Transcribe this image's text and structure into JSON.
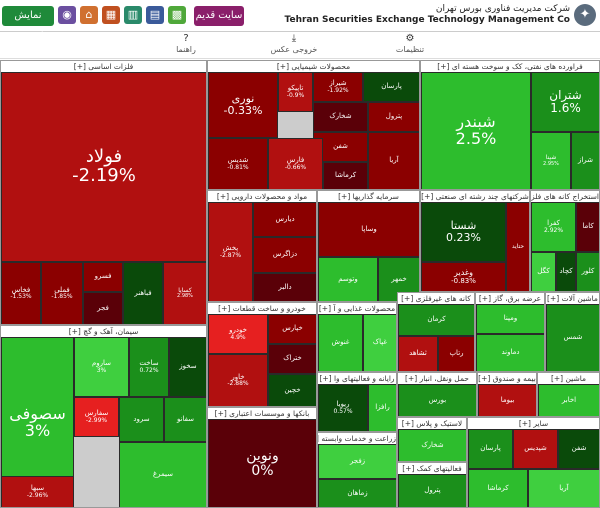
{
  "header": {
    "org_fa": "شرکت مدیریت فناوری بورس تهران",
    "org_en": "Tehran Securities Exchange Technology Management Co",
    "old_site_label": "سایت قدیم",
    "show_list_label": "نمایش فهرست"
  },
  "toolbar": {
    "settings_label": "تنظیمات",
    "fullscreen_label": "خروجی عکس",
    "help_label": "راهنما"
  },
  "sectors": {
    "basic_metals": "فلزات اساسی [+]",
    "chemicals": "محصولات شیمیایی [+]",
    "oil": "فراورده های نفتی، کک و سوخت هسته ای [+]",
    "cement": "سیمان، آهک و گچ [+]",
    "pharma": "مواد و محصولات دارویی [+]",
    "investment": "سرمایه گذاریها [+]",
    "multi": "شرکتهای چند رشته ای صنعتی [+]",
    "mining": "استخراج کانه های فلزی [+]",
    "auto": "خودرو و ساخت قطعات [+]",
    "food": "محصولات غذایی و آ [+]",
    "telecom": "رایانه و فعالیتهای وا [+]",
    "utilities": "عرضه برق، گاز [+]",
    "ceramics": "کانه های غیرفلزی [+]",
    "banks": "بانکها و موسسات اعتباری [+]",
    "agri": "زراعت و خدمات وابسته [+]",
    "rubber": "لاستیک و پلاس [+]",
    "transport": "حمل ونقل، انبار [+]",
    "finance": "فعالیتهای کمک [+]",
    "insurance": "بیمه و صندوق [+]",
    "machinery": "ماشین آلات [+]",
    "ceramic2": "سرامیک [+]",
    "textile": "ماشین [+]",
    "misc": "سایر [+]"
  },
  "tiles": {
    "foolad": {
      "name": "فولاد",
      "change": "-2.19%"
    },
    "fakhooz": {
      "name": "فخاس",
      "change": "-1.53%"
    },
    "fmeli": {
      "name": "فملی",
      "change": "-1.85%"
    },
    "fsoroos": {
      "name": "فسرو",
      "change": ""
    },
    "foolad2": {
      "name": "فباهنر",
      "change": ""
    },
    "fjer": {
      "name": "فجر",
      "change": ""
    },
    "noori": {
      "name": "نوری",
      "change": "-0.33%"
    },
    "tapico": {
      "name": "تاپیکو",
      "change": "-0.9%"
    },
    "shiraz": {
      "name": "شیراز",
      "change": "-1.92%"
    },
    "parsan": {
      "name": "پارسان",
      "change": ""
    },
    "shebandar_c": {
      "name": "شیندر",
      "change": ""
    },
    "shekharak": {
      "name": "شخارک",
      "change": ""
    },
    "petrol": {
      "name": "پترول",
      "change": ""
    },
    "shafan": {
      "name": "شفن",
      "change": ""
    },
    "shedis": {
      "name": "شدیس",
      "change": "-0.81%"
    },
    "fars": {
      "name": "فارس",
      "change": "-0.66%"
    },
    "kermasha": {
      "name": "کرماشا",
      "change": ""
    },
    "shepdis": {
      "name": "شپدیس",
      "change": ""
    },
    "arya": {
      "name": "آریا",
      "change": ""
    },
    "shebandar": {
      "name": "شبندر",
      "change": "2.5%"
    },
    "shetran": {
      "name": "شتران",
      "change": "1.6%"
    },
    "shiraz2": {
      "name": "شپنا",
      "change": "2.95%"
    },
    "sharaz": {
      "name": "شراز",
      "change": ""
    },
    "sofooji": {
      "name": "سصوفی",
      "change": "3%"
    },
    "sarum": {
      "name": "ساروم",
      "change": "3%"
    },
    "sakht": {
      "name": "ساخت",
      "change": "0.72%"
    },
    "skhooz": {
      "name": "سخوز",
      "change": ""
    },
    "sabha": {
      "name": "سبها",
      "change": "-2.96%"
    },
    "sfars": {
      "name": "سفارس",
      "change": "-2.99%"
    },
    "srood": {
      "name": "سرود",
      "change": ""
    },
    "sfano": {
      "name": "سفانو",
      "change": ""
    },
    "simorgh": {
      "name": "سیمرغ",
      "change": ""
    },
    "pakhsh": {
      "name": "پخش",
      "change": "-2.87%"
    },
    "dipars": {
      "name": "دیارس",
      "change": ""
    },
    "dalgars": {
      "name": "دالبر",
      "change": ""
    },
    "dzagros": {
      "name": "دزاگرس",
      "change": ""
    },
    "vsapa": {
      "name": "وساپا",
      "change": ""
    },
    "vgstar": {
      "name": "وتوسم",
      "change": ""
    },
    "shasta": {
      "name": "شستا",
      "change": "0.23%"
    },
    "vghadir": {
      "name": "وغدیر",
      "change": "-0.83%"
    },
    "khodro": {
      "name": "خودرو",
      "change": "4.9%"
    },
    "khepars": {
      "name": "خپارس",
      "change": ""
    },
    "kheraj": {
      "name": "ختراک",
      "change": ""
    },
    "khchin": {
      "name": "خچین",
      "change": ""
    },
    "khavar": {
      "name": "خاور",
      "change": "-2.88%"
    },
    "kaghazi": {
      "name": "کاما",
      "change": ""
    },
    "kchad": {
      "name": "کچاد",
      "change": ""
    },
    "kgol": {
      "name": "کگل",
      "change": ""
    },
    "kalor": {
      "name": "کلور",
      "change": ""
    },
    "kafr": {
      "name": "کفرا",
      "change": "2.92%"
    },
    "ghanoosh": {
      "name": "غنوش",
      "change": ""
    },
    "ghapak": {
      "name": "غپاک",
      "change": ""
    },
    "rtapikoo": {
      "name": "رتاپ",
      "change": ""
    },
    "ravir": {
      "name": "ریویا",
      "change": "0.57%"
    },
    "raghab": {
      "name": "رافزا",
      "change": ""
    },
    "vanovin": {
      "name": "ونوین",
      "change": "0%"
    },
    "kerman": {
      "name": "کرمان",
      "change": ""
    },
    "shahed": {
      "name": "ثشاهد",
      "change": ""
    },
    "shams": {
      "name": "شمس",
      "change": ""
    },
    "vmapna": {
      "name": "ومپنا",
      "change": ""
    },
    "damavand": {
      "name": "دماوند",
      "change": ""
    },
    "boyoma": {
      "name": "بیوما",
      "change": ""
    },
    "hamal": {
      "name": "حتاید",
      "change": ""
    },
    "sebura": {
      "name": "بورس",
      "change": ""
    },
    "sanarat": {
      "name": "اخابر",
      "change": ""
    },
    "zagrop": {
      "name": "زفجر",
      "change": ""
    },
    "zmagas": {
      "name": "زماهان",
      "change": ""
    },
    "kharm": {
      "name": "خمهر",
      "change": ""
    },
    "mapna": {
      "name": "کساپا",
      "change": "2.98%"
    }
  },
  "colors": {
    "deep_red": "#8b0000",
    "red": "#b11010",
    "bright_red": "#e62020",
    "dark_red": "#5a0008",
    "deep_green": "#0a4a0a",
    "green": "#1b8f1b",
    "bright_green": "#2dbd2d",
    "lime": "#3fcf3f",
    "neutral": "#8a8a8a"
  }
}
